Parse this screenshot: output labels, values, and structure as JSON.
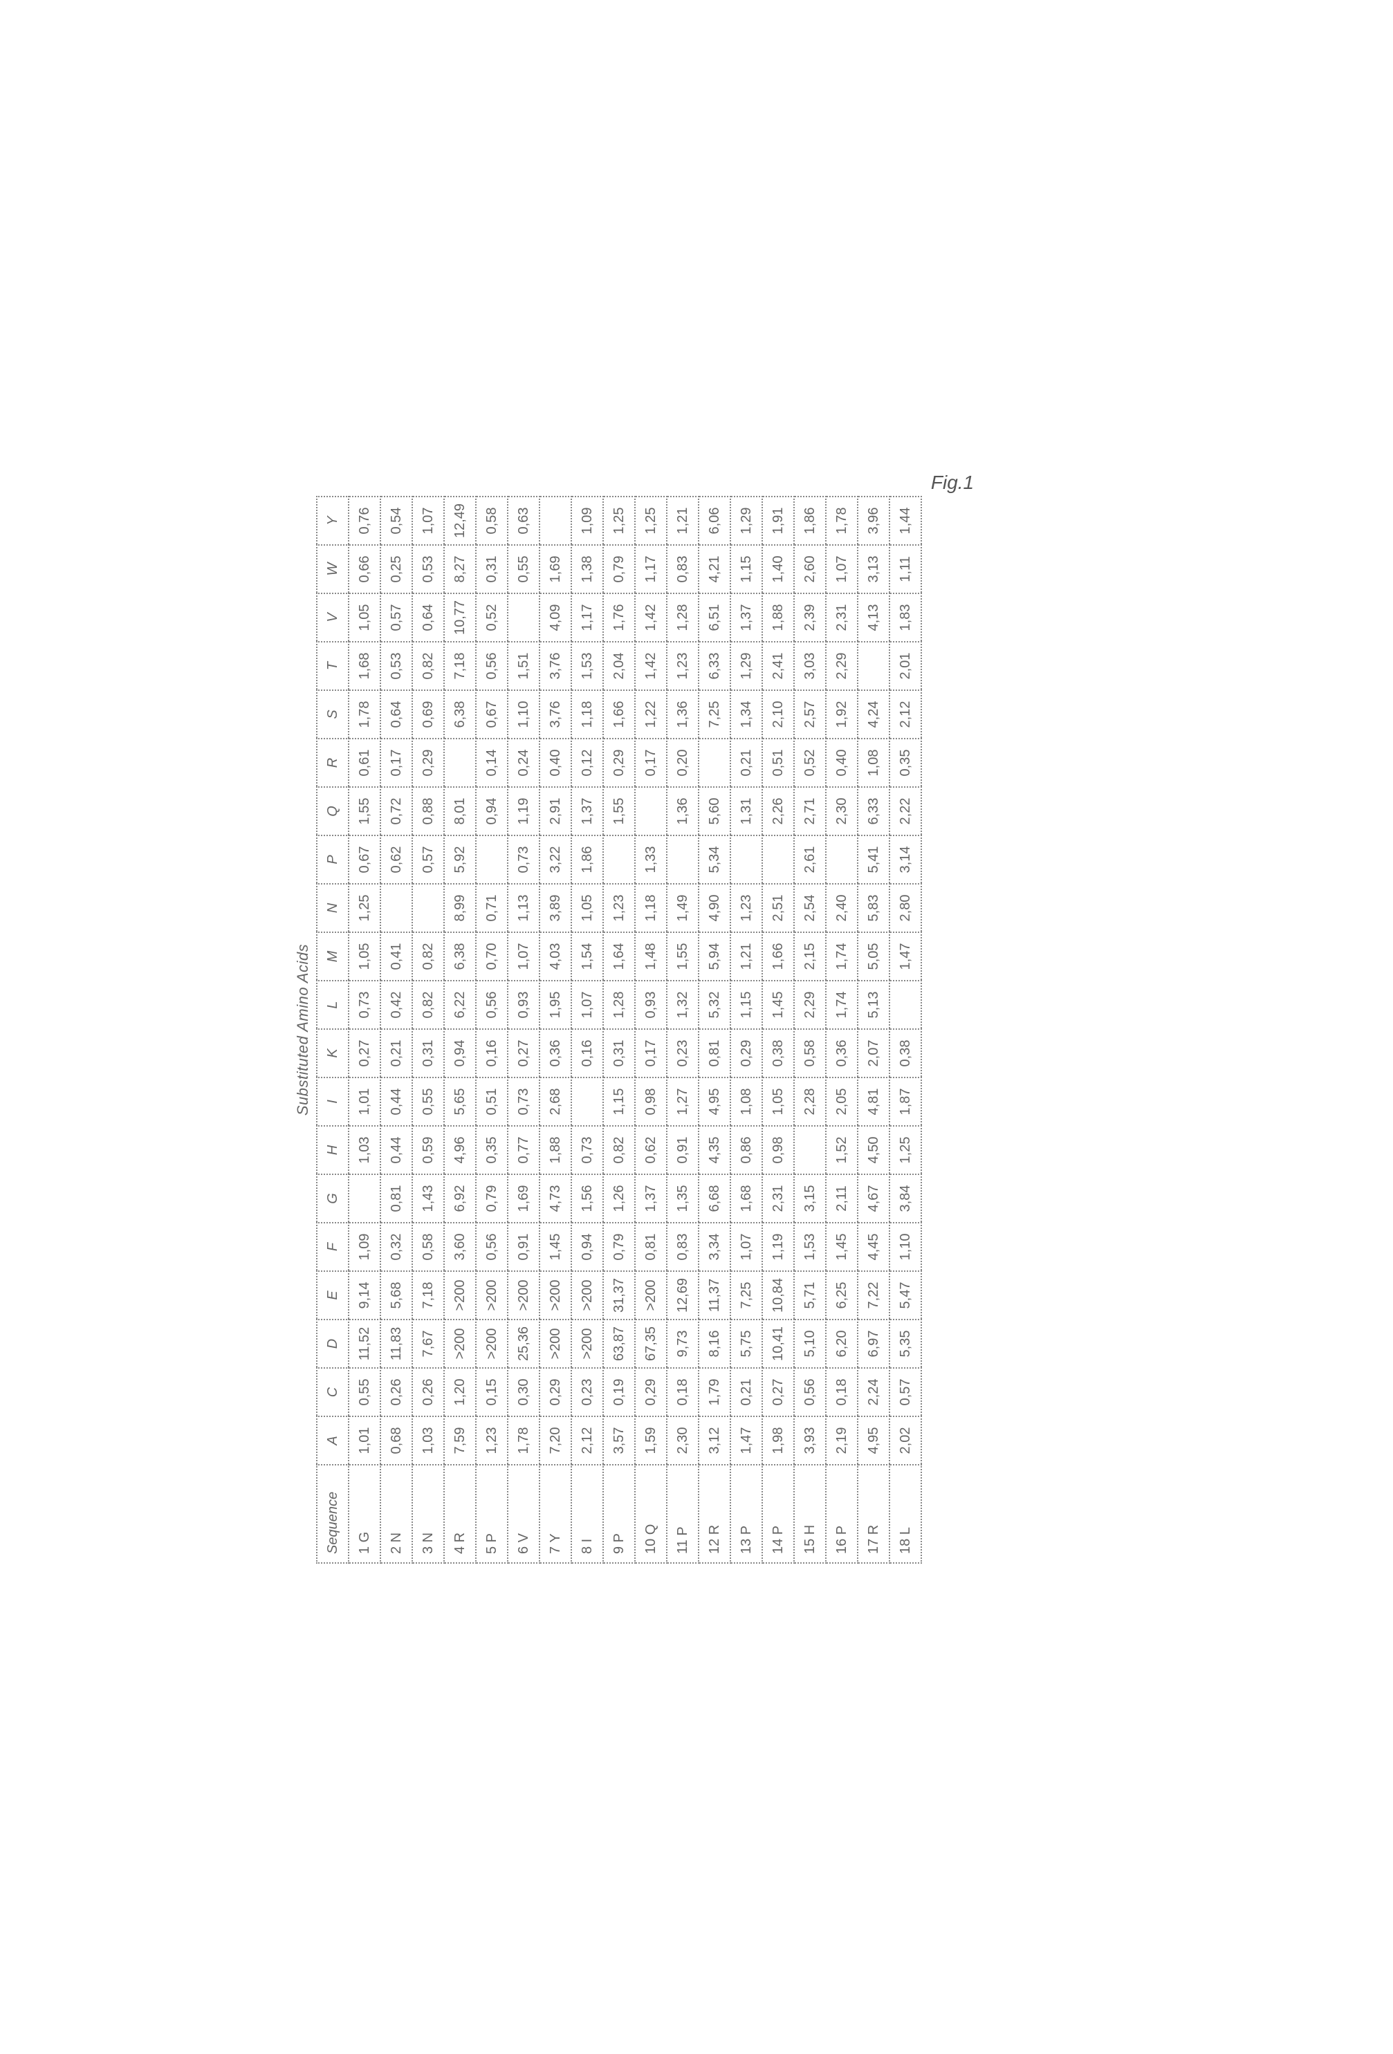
{
  "title": "Substituted Amino Acids",
  "figureLabel": "Fig.1",
  "columns": [
    "Sequence",
    "A",
    "C",
    "D",
    "E",
    "F",
    "G",
    "H",
    "I",
    "K",
    "L",
    "M",
    "N",
    "P",
    "Q",
    "R",
    "S",
    "T",
    "V",
    "W",
    "Y"
  ],
  "rows": [
    {
      "seq": "1 G",
      "cells": [
        "1,01",
        "0,55",
        "11,52",
        "9,14",
        "1,09",
        "",
        "1,03",
        "1,01",
        "0,27",
        "0,73",
        "1,05",
        "1,25",
        "0,67",
        "1,55",
        "0,61",
        "1,78",
        "1,68",
        "1,05",
        "0,66",
        "0,76"
      ]
    },
    {
      "seq": "2 N",
      "cells": [
        "0,68",
        "0,26",
        "11,83",
        "5,68",
        "0,32",
        "0,81",
        "0,44",
        "0,44",
        "0,21",
        "0,42",
        "0,41",
        "",
        "0,62",
        "0,72",
        "0,17",
        "0,64",
        "0,53",
        "0,57",
        "0,25",
        "0,54"
      ]
    },
    {
      "seq": "3 N",
      "cells": [
        "1,03",
        "0,26",
        "7,67",
        "7,18",
        "0,58",
        "1,43",
        "0,59",
        "0,55",
        "0,31",
        "0,82",
        "0,82",
        "",
        "0,57",
        "0,88",
        "0,29",
        "0,69",
        "0,82",
        "0,64",
        "0,53",
        "1,07"
      ]
    },
    {
      "seq": "4 R",
      "cells": [
        "7,59",
        "1,20",
        ">200",
        ">200",
        "3,60",
        "6,92",
        "4,96",
        "5,65",
        "0,94",
        "6,22",
        "6,38",
        "8,99",
        "5,92",
        "8,01",
        "",
        "6,38",
        "7,18",
        "10,77",
        "8,27",
        "12,49"
      ]
    },
    {
      "seq": "5 P",
      "cells": [
        "1,23",
        "0,15",
        ">200",
        ">200",
        "0,56",
        "0,79",
        "0,35",
        "0,51",
        "0,16",
        "0,56",
        "0,70",
        "0,71",
        "",
        "0,94",
        "0,14",
        "0,67",
        "0,56",
        "0,52",
        "0,31",
        "0,58"
      ]
    },
    {
      "seq": "6 V",
      "cells": [
        "1,78",
        "0,30",
        "25,36",
        ">200",
        "0,91",
        "1,69",
        "0,77",
        "0,73",
        "0,27",
        "0,93",
        "1,07",
        "1,13",
        "0,73",
        "1,19",
        "0,24",
        "1,10",
        "1,51",
        "",
        "0,55",
        "0,63"
      ]
    },
    {
      "seq": "7 Y",
      "cells": [
        "7,20",
        "0,29",
        ">200",
        ">200",
        "1,45",
        "4,73",
        "1,88",
        "2,68",
        "0,36",
        "1,95",
        "4,03",
        "3,89",
        "3,22",
        "2,91",
        "0,40",
        "3,76",
        "3,76",
        "4,09",
        "1,69",
        ""
      ]
    },
    {
      "seq": "8 I",
      "cells": [
        "2,12",
        "0,23",
        ">200",
        ">200",
        "0,94",
        "1,56",
        "0,73",
        "",
        "0,16",
        "1,07",
        "1,54",
        "1,05",
        "1,86",
        "1,37",
        "0,12",
        "1,18",
        "1,53",
        "1,17",
        "1,38",
        "1,09"
      ]
    },
    {
      "seq": "9 P",
      "cells": [
        "3,57",
        "0,19",
        "63,87",
        "31,37",
        "0,79",
        "1,26",
        "0,82",
        "1,15",
        "0,31",
        "1,28",
        "1,64",
        "1,23",
        "",
        "1,55",
        "0,29",
        "1,66",
        "2,04",
        "1,76",
        "0,79",
        "1,25"
      ]
    },
    {
      "seq": "10 Q",
      "cells": [
        "1,59",
        "0,29",
        "67,35",
        ">200",
        "0,81",
        "1,37",
        "0,62",
        "0,98",
        "0,17",
        "0,93",
        "1,48",
        "1,18",
        "1,33",
        "",
        "0,17",
        "1,22",
        "1,42",
        "1,42",
        "1,17",
        "1,25"
      ]
    },
    {
      "seq": "11 P",
      "cells": [
        "2,30",
        "0,18",
        "9,73",
        "12,69",
        "0,83",
        "1,35",
        "0,91",
        "1,27",
        "0,23",
        "1,32",
        "1,55",
        "1,49",
        "",
        "1,36",
        "0,20",
        "1,36",
        "1,23",
        "1,28",
        "0,83",
        "1,21"
      ]
    },
    {
      "seq": "12 R",
      "cells": [
        "3,12",
        "1,79",
        "8,16",
        "11,37",
        "3,34",
        "6,68",
        "4,35",
        "4,95",
        "0,81",
        "5,32",
        "5,94",
        "4,90",
        "5,34",
        "5,60",
        "",
        "7,25",
        "6,33",
        "6,51",
        "4,21",
        "6,06"
      ]
    },
    {
      "seq": "13 P",
      "cells": [
        "1,47",
        "0,21",
        "5,75",
        "7,25",
        "1,07",
        "1,68",
        "0,86",
        "1,08",
        "0,29",
        "1,15",
        "1,21",
        "1,23",
        "",
        "1,31",
        "0,21",
        "1,34",
        "1,29",
        "1,37",
        "1,15",
        "1,29"
      ]
    },
    {
      "seq": "14 P",
      "cells": [
        "1,98",
        "0,27",
        "10,41",
        "10,84",
        "1,19",
        "2,31",
        "0,98",
        "1,05",
        "0,38",
        "1,45",
        "1,66",
        "2,51",
        "",
        "2,26",
        "0,51",
        "2,10",
        "2,41",
        "1,88",
        "1,40",
        "1,91"
      ]
    },
    {
      "seq": "15 H",
      "cells": [
        "3,93",
        "0,56",
        "5,10",
        "5,71",
        "1,53",
        "3,15",
        "",
        "2,28",
        "0,58",
        "2,29",
        "2,15",
        "2,54",
        "2,61",
        "2,71",
        "0,52",
        "2,57",
        "3,03",
        "2,39",
        "2,60",
        "1,86"
      ]
    },
    {
      "seq": "16 P",
      "cells": [
        "2,19",
        "0,18",
        "6,20",
        "6,25",
        "1,45",
        "2,11",
        "1,52",
        "2,05",
        "0,36",
        "1,74",
        "1,74",
        "2,40",
        "",
        "2,30",
        "0,40",
        "1,92",
        "2,29",
        "2,31",
        "1,07",
        "1,78"
      ]
    },
    {
      "seq": "17 R",
      "cells": [
        "4,95",
        "2,24",
        "6,97",
        "7,22",
        "4,45",
        "4,67",
        "4,50",
        "4,81",
        "2,07",
        "5,13",
        "5,05",
        "5,83",
        "5,41",
        "6,33",
        "1,08",
        "4,24",
        "",
        "4,13",
        "3,13",
        "3,96"
      ]
    },
    {
      "seq": "18 L",
      "cells": [
        "2,02",
        "0,57",
        "5,35",
        "5,47",
        "1,10",
        "3,84",
        "1,25",
        "1,87",
        "0,38",
        "",
        "1,47",
        "2,80",
        "3,14",
        "2,22",
        "0,35",
        "2,12",
        "2,01",
        "1,83",
        "1,11",
        "1,44"
      ]
    }
  ]
}
